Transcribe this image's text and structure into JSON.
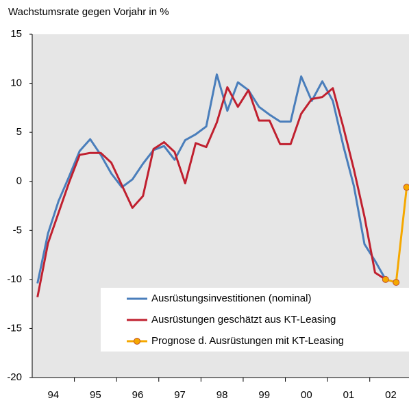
{
  "chart_data": {
    "type": "line",
    "title": "Wachstumsrate gegen Vorjahr in %",
    "x": [
      1994.125,
      1994.375,
      1994.625,
      1994.875,
      1995.125,
      1995.375,
      1995.625,
      1995.875,
      1996.125,
      1996.375,
      1996.625,
      1996.875,
      1997.125,
      1997.375,
      1997.625,
      1997.875,
      1998.125,
      1998.375,
      1998.625,
      1998.875,
      1999.125,
      1999.375,
      1999.625,
      1999.875,
      2000.125,
      2000.375,
      2000.625,
      2000.875,
      2001.125,
      2001.375,
      2001.625,
      2001.875,
      2002.125,
      2002.375,
      2002.625,
      2002.875
    ],
    "xlim": [
      1994,
      2002.93
    ],
    "xticks": [
      {
        "value": 1994.5,
        "label": "94"
      },
      {
        "value": 1995.5,
        "label": "95"
      },
      {
        "value": 1996.5,
        "label": "96"
      },
      {
        "value": 1997.5,
        "label": "97"
      },
      {
        "value": 1998.5,
        "label": "98"
      },
      {
        "value": 1999.5,
        "label": "99"
      },
      {
        "value": 2000.5,
        "label": "00"
      },
      {
        "value": 2001.5,
        "label": "01"
      },
      {
        "value": 2002.5,
        "label": "02"
      }
    ],
    "ylim": [
      -20,
      15
    ],
    "yticks": [
      -20,
      -15,
      -10,
      -5,
      0,
      5,
      10,
      15
    ],
    "series": [
      {
        "name": "Ausrüstungsinvestitionen (nominal)",
        "color": "#4a7ebb",
        "values": [
          -10.4,
          -5.3,
          -2,
          0.5,
          3.1,
          4.3,
          2.7,
          0.8,
          -0.6,
          0.2,
          1.8,
          3.2,
          3.6,
          2.2,
          4.2,
          4.8,
          5.6,
          10.9,
          7.2,
          10.1,
          9.3,
          7.6,
          6.8,
          6.1,
          6.1,
          10.7,
          8.2,
          10.2,
          8.2,
          3.6,
          -0.5,
          -6.4,
          -8.1,
          -10.0,
          null,
          null
        ]
      },
      {
        "name": "Ausrüstungen geschätzt aus KT-Leasing",
        "color": "#c0202f",
        "values": [
          -11.8,
          -6.3,
          -3.2,
          -0.1,
          2.7,
          2.9,
          2.9,
          1.9,
          -0.4,
          -2.7,
          -1.5,
          3.3,
          4.0,
          3.0,
          -0.2,
          3.9,
          3.5,
          6.0,
          9.6,
          7.6,
          9.3,
          6.2,
          6.2,
          3.8,
          3.8,
          6.9,
          8.4,
          8.6,
          9.5,
          5.5,
          1.2,
          -3.6,
          -9.3,
          -10.0,
          null,
          null
        ]
      },
      {
        "name": "Prognose d. Ausrüstungen mit KT-Leasing",
        "color": "#f5a800",
        "marker": true,
        "values": [
          null,
          null,
          null,
          null,
          null,
          null,
          null,
          null,
          null,
          null,
          null,
          null,
          null,
          null,
          null,
          null,
          null,
          null,
          null,
          null,
          null,
          null,
          null,
          null,
          null,
          null,
          null,
          null,
          null,
          null,
          null,
          null,
          null,
          -10.0,
          -10.3,
          -0.6
        ]
      }
    ]
  }
}
